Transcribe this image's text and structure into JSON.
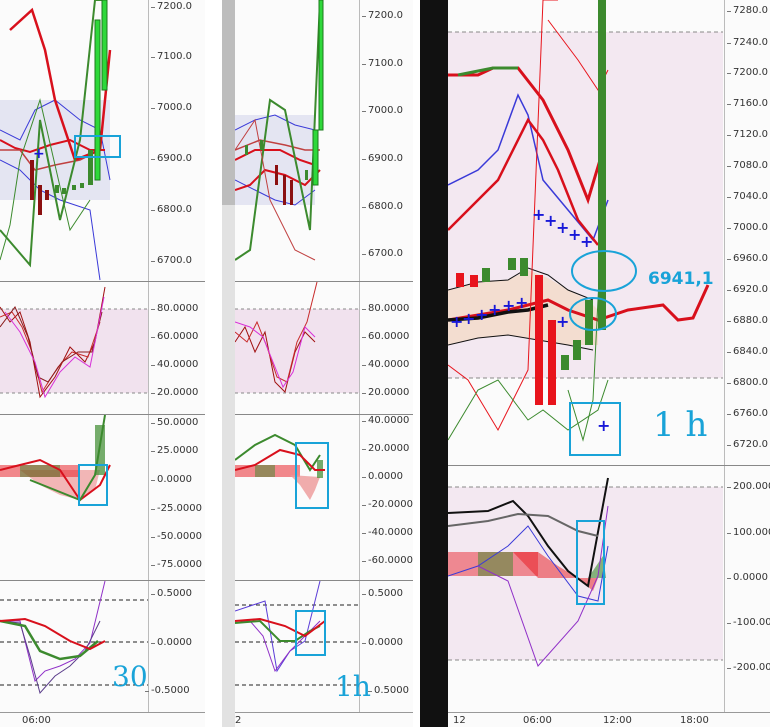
{
  "panels": [
    {
      "name": "30m",
      "price_ticks": [
        "7200.0",
        "7100.0",
        "7000.0",
        "6900.0",
        "6800.0",
        "6700.0"
      ],
      "stoch_ticks": [
        "80.0000",
        "60.0000",
        "40.0000",
        "20.0000"
      ],
      "macd_ticks": [
        "50.0000",
        "25.0000",
        "0.0000",
        "-25.0000",
        "-50.0000",
        "-75.0000"
      ],
      "osc_ticks": [
        "0.5000",
        "0.0000",
        "-0.5000"
      ],
      "time_ticks": [
        "06:00"
      ]
    },
    {
      "name": "1h-small",
      "price_ticks": [
        "7200.0",
        "7100.0",
        "7000.0",
        "6900.0",
        "6800.0",
        "6700.0"
      ],
      "stoch_ticks": [
        "80.0000",
        "60.0000",
        "40.0000",
        "20.0000"
      ],
      "macd_ticks": [
        "40.0000",
        "20.0000",
        "0.0000",
        "-20.0000",
        "-40.0000",
        "-60.0000"
      ],
      "osc_ticks": [
        "0.5000",
        "0.0000",
        "0.5000"
      ],
      "time_ticks": [
        "2"
      ]
    },
    {
      "name": "1h-large",
      "price_ticks": [
        "7280.0",
        "7240.0",
        "7200.0",
        "7160.0",
        "7120.0",
        "7080.0",
        "7040.0",
        "7000.0",
        "6960.0",
        "6920.0",
        "6880.0",
        "6840.0",
        "6800.0",
        "6760.0",
        "6720.0"
      ],
      "osc_ticks": [
        "200.0000",
        "100.0000",
        "0.0000",
        "-100.0000",
        "-200.0000"
      ],
      "time_ticks": [
        "12",
        "06:00",
        "12:00",
        "18:00"
      ]
    }
  ],
  "annotations": {
    "price_label": "6941,1",
    "tf_30": "30",
    "tf_1h_small": "1h",
    "tf_1h_large": "1 h"
  },
  "colors": {
    "annotation": "#19a3d8",
    "bull_candle": "#3c8a2e",
    "bear_candle": "#e8141c",
    "ma_red": "#d8101c",
    "ma_blue": "#3a3ad8",
    "band_fill": "#f3e4ea"
  }
}
